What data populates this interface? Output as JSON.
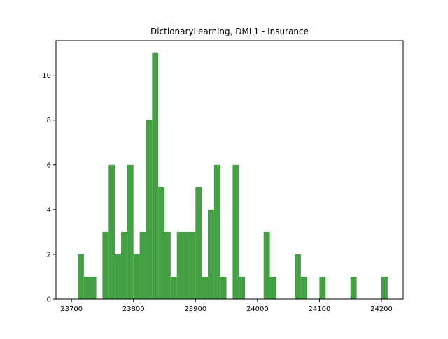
{
  "chart_data": {
    "type": "bar",
    "title": "DictionaryLearning, DML1 - Insurance",
    "xlabel": "",
    "ylabel": "",
    "xlim": [
      23675,
      24235
    ],
    "ylim": [
      0,
      11.55
    ],
    "bin_width": 10,
    "color": "#43a143",
    "grid": false,
    "xticks": [
      23700,
      23800,
      23900,
      24000,
      24100,
      24200
    ],
    "xtick_labels": [
      "23700",
      "23800",
      "23900",
      "24000",
      "24100",
      "24200"
    ],
    "yticks": [
      0,
      2,
      4,
      6,
      8,
      10
    ],
    "ytick_labels": [
      "0",
      "2",
      "4",
      "6",
      "8",
      "10"
    ],
    "bins": [
      {
        "x": 23710,
        "count": 2
      },
      {
        "x": 23720,
        "count": 1
      },
      {
        "x": 23730,
        "count": 1
      },
      {
        "x": 23750,
        "count": 3
      },
      {
        "x": 23760,
        "count": 6
      },
      {
        "x": 23770,
        "count": 2
      },
      {
        "x": 23780,
        "count": 3
      },
      {
        "x": 23790,
        "count": 6
      },
      {
        "x": 23800,
        "count": 2
      },
      {
        "x": 23810,
        "count": 3
      },
      {
        "x": 23820,
        "count": 8
      },
      {
        "x": 23830,
        "count": 11
      },
      {
        "x": 23840,
        "count": 5
      },
      {
        "x": 23850,
        "count": 3
      },
      {
        "x": 23860,
        "count": 1
      },
      {
        "x": 23870,
        "count": 3
      },
      {
        "x": 23880,
        "count": 3
      },
      {
        "x": 23890,
        "count": 3
      },
      {
        "x": 23900,
        "count": 5
      },
      {
        "x": 23910,
        "count": 1
      },
      {
        "x": 23920,
        "count": 4
      },
      {
        "x": 23930,
        "count": 6
      },
      {
        "x": 23940,
        "count": 1
      },
      {
        "x": 23960,
        "count": 6
      },
      {
        "x": 23970,
        "count": 1
      },
      {
        "x": 24010,
        "count": 3
      },
      {
        "x": 24020,
        "count": 1
      },
      {
        "x": 24060,
        "count": 2
      },
      {
        "x": 24070,
        "count": 1
      },
      {
        "x": 24100,
        "count": 1
      },
      {
        "x": 24150,
        "count": 1
      },
      {
        "x": 24200,
        "count": 1
      }
    ]
  }
}
